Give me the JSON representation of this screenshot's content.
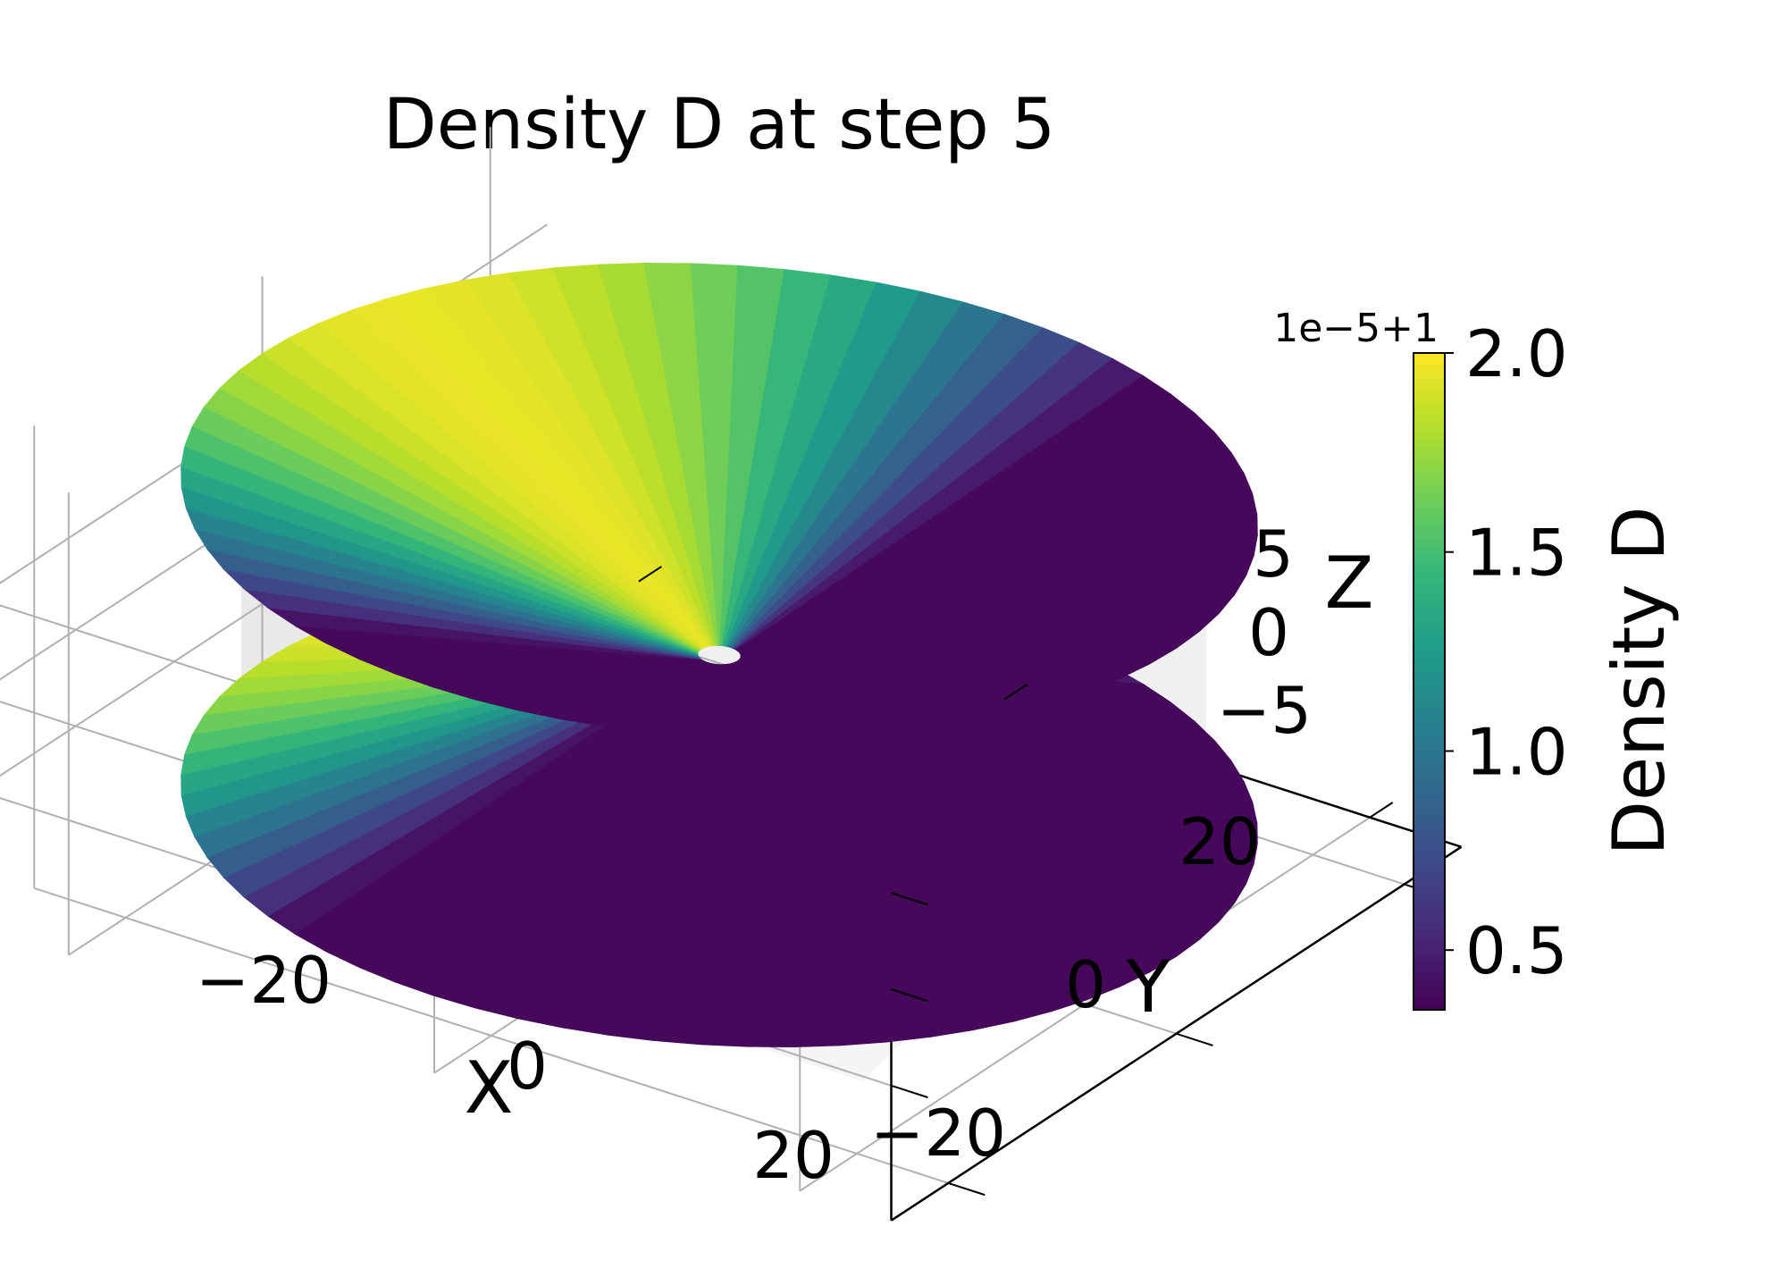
{
  "chart_data": {
    "type": "surface",
    "title": "Density D at step 5",
    "xlabel": "X",
    "ylabel": "Y",
    "zlabel": "Z",
    "x_ticks": [
      "−20",
      "0",
      "20"
    ],
    "y_ticks": [
      "−20",
      "0",
      "20"
    ],
    "z_ticks": [
      "−5",
      "0",
      "5"
    ],
    "xlim": [
      -25,
      25
    ],
    "ylim": [
      -25,
      25
    ],
    "zlim": [
      -8,
      8
    ],
    "grid": true,
    "surface": {
      "shape": "hyperboloid",
      "radius_range": [
        1,
        25
      ],
      "z_range": [
        -8,
        8
      ],
      "colored_by": "Density D"
    },
    "colorbar": {
      "label": "Density D",
      "offset_text": "1e−5+1",
      "ticks": [
        "0.5",
        "1.0",
        "1.5",
        "2.0"
      ],
      "tick_values": [
        0.5,
        1.0,
        1.5,
        2.0
      ],
      "range": [
        0.35,
        2.0
      ],
      "colormap": "viridis",
      "colors": [
        "#440154",
        "#482878",
        "#3e4a89",
        "#31688e",
        "#26828e",
        "#1f9e89",
        "#35b779",
        "#6ece58",
        "#b5de2b",
        "#fde725"
      ],
      "position": "right"
    }
  }
}
